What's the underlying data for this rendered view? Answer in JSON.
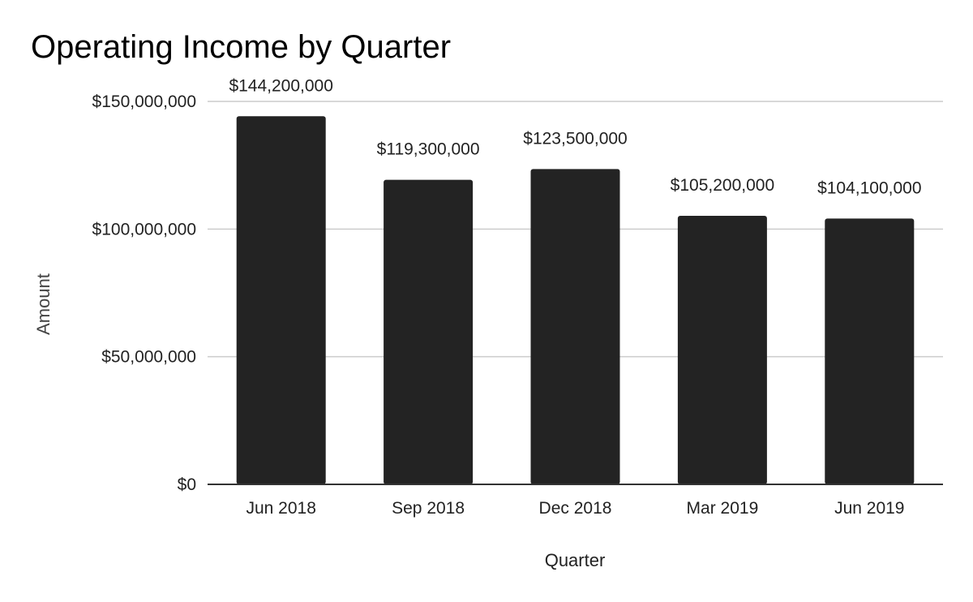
{
  "chart_data": {
    "type": "bar",
    "title": "Operating Income by Quarter",
    "xlabel": "Quarter",
    "ylabel": "Amount",
    "categories": [
      "Jun 2018",
      "Sep 2018",
      "Dec 2018",
      "Mar 2019",
      "Jun 2019"
    ],
    "values": [
      144200000,
      119300000,
      123500000,
      105200000,
      104100000
    ],
    "value_labels": [
      "$144,200,000",
      "$119,300,000",
      "$123,500,000",
      "$105,200,000",
      "$104,100,000"
    ],
    "ylim": [
      0,
      150000000
    ],
    "yticks": [
      0,
      50000000,
      100000000,
      150000000
    ],
    "ytick_labels": [
      "$0",
      "$50,000,000",
      "$100,000,000",
      "$150,000,000"
    ],
    "grid": true,
    "legend": "none",
    "colors": {
      "bar": "#232323",
      "grid": "#cccccc",
      "baseline": "#333333"
    }
  }
}
